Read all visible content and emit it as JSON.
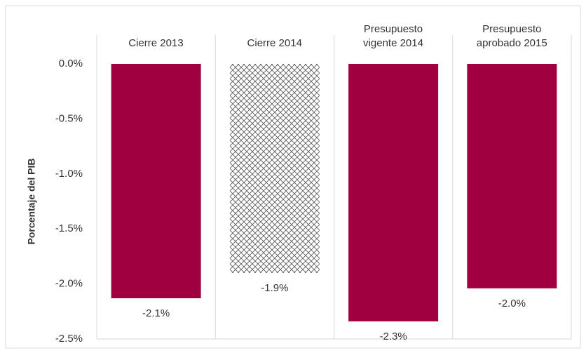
{
  "chart_data": {
    "type": "bar",
    "categories": [
      "Cierre 2013",
      "Cierre 2014",
      "Presupuesto\nvigente 2014",
      "Presupuesto\naprobado 2015"
    ],
    "values": [
      -2.13,
      -1.9,
      -2.34,
      -2.04
    ],
    "value_labels": [
      "-2.1%",
      "-1.9%",
      "-2.3%",
      "-2.0%"
    ],
    "color": "#a0003f",
    "hatched": [
      false,
      true,
      false,
      false
    ],
    "y_label": "Porcentaje del PIB",
    "ylim": [
      -2.5,
      0
    ],
    "yticks": [
      {
        "value": 0,
        "label": "0.0%"
      },
      {
        "value": -0.5,
        "label": "-0.5%"
      },
      {
        "value": -1,
        "label": "-1.0%"
      },
      {
        "value": -1.5,
        "label": "-1.5%"
      },
      {
        "value": -2,
        "label": "-2.0%"
      },
      {
        "value": -2.5,
        "label": "-2.5%"
      }
    ]
  }
}
